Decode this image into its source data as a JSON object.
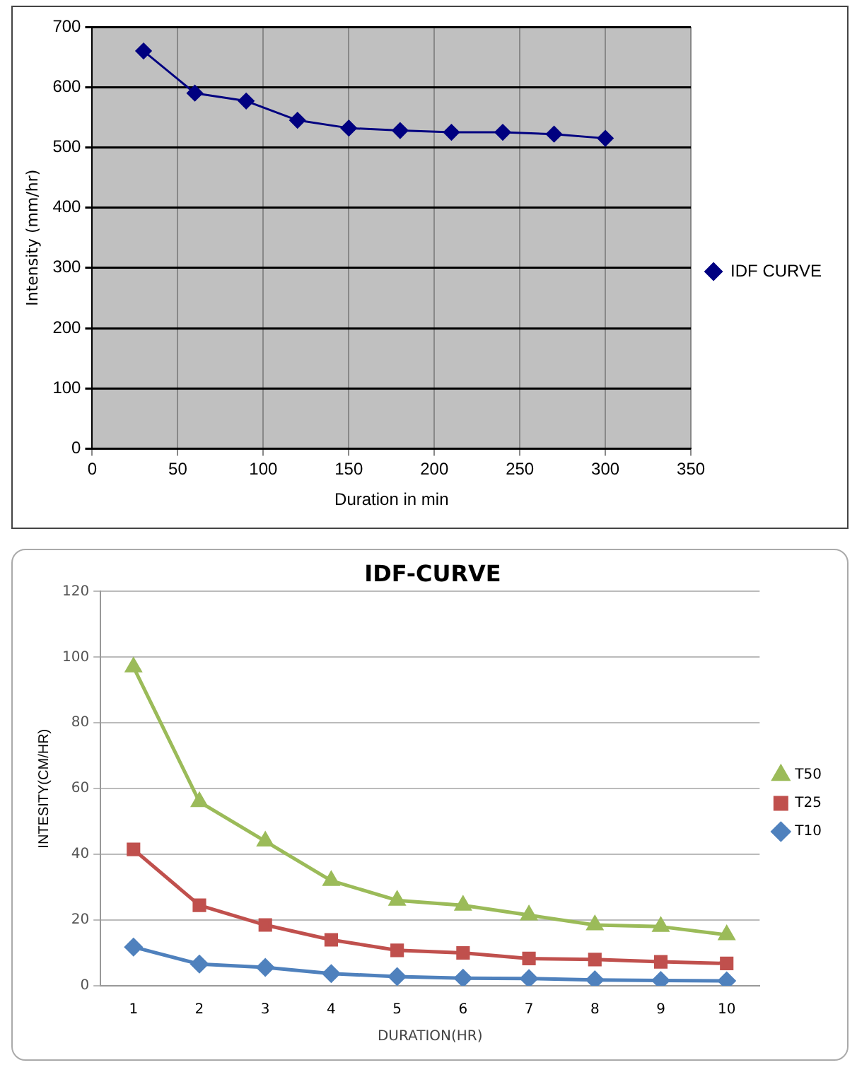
{
  "chart_data": [
    {
      "type": "line",
      "xlabel": "Duration in min",
      "ylabel": "Intensity (mm/hr)",
      "x": [
        30,
        60,
        90,
        120,
        150,
        180,
        210,
        240,
        270,
        300
      ],
      "series": [
        {
          "name": "IDF CURVE",
          "color": "#000080",
          "marker": "diamond",
          "values": [
            660,
            590,
            577,
            545,
            532,
            528,
            525,
            525,
            522,
            515
          ]
        }
      ],
      "xlim": [
        0,
        350
      ],
      "xticks": [
        0,
        50,
        100,
        150,
        200,
        250,
        300,
        350
      ],
      "ylim": [
        0,
        700
      ],
      "yticks": [
        0,
        100,
        200,
        300,
        400,
        500,
        600,
        700
      ],
      "grid": true,
      "legend": "right"
    },
    {
      "type": "line",
      "title": "IDF-CURVE",
      "xlabel": "DURATION(HR)",
      "ylabel": "INTESITY(CM/HR)",
      "categories": [
        "1",
        "2",
        "3",
        "4",
        "5",
        "6",
        "7",
        "8",
        "9",
        "10"
      ],
      "series": [
        {
          "name": "T50",
          "color": "#9bbb59",
          "marker": "triangle",
          "values": [
            97,
            56,
            44,
            32,
            26,
            24.5,
            21.5,
            18.5,
            18,
            15.5
          ]
        },
        {
          "name": "T25",
          "color": "#c0504d",
          "marker": "square",
          "values": [
            41.5,
            24.5,
            18.5,
            14,
            10.8,
            10,
            8.3,
            8,
            7.3,
            6.8
          ]
        },
        {
          "name": "T10",
          "color": "#4f81bd",
          "marker": "diamond",
          "values": [
            11.8,
            6.6,
            5.6,
            3.7,
            2.8,
            2.3,
            2.2,
            1.8,
            1.6,
            1.5
          ]
        }
      ],
      "ylim": [
        0,
        120
      ],
      "yticks": [
        0,
        20,
        40,
        60,
        80,
        100,
        120
      ],
      "grid": "y",
      "legend": "right"
    }
  ]
}
